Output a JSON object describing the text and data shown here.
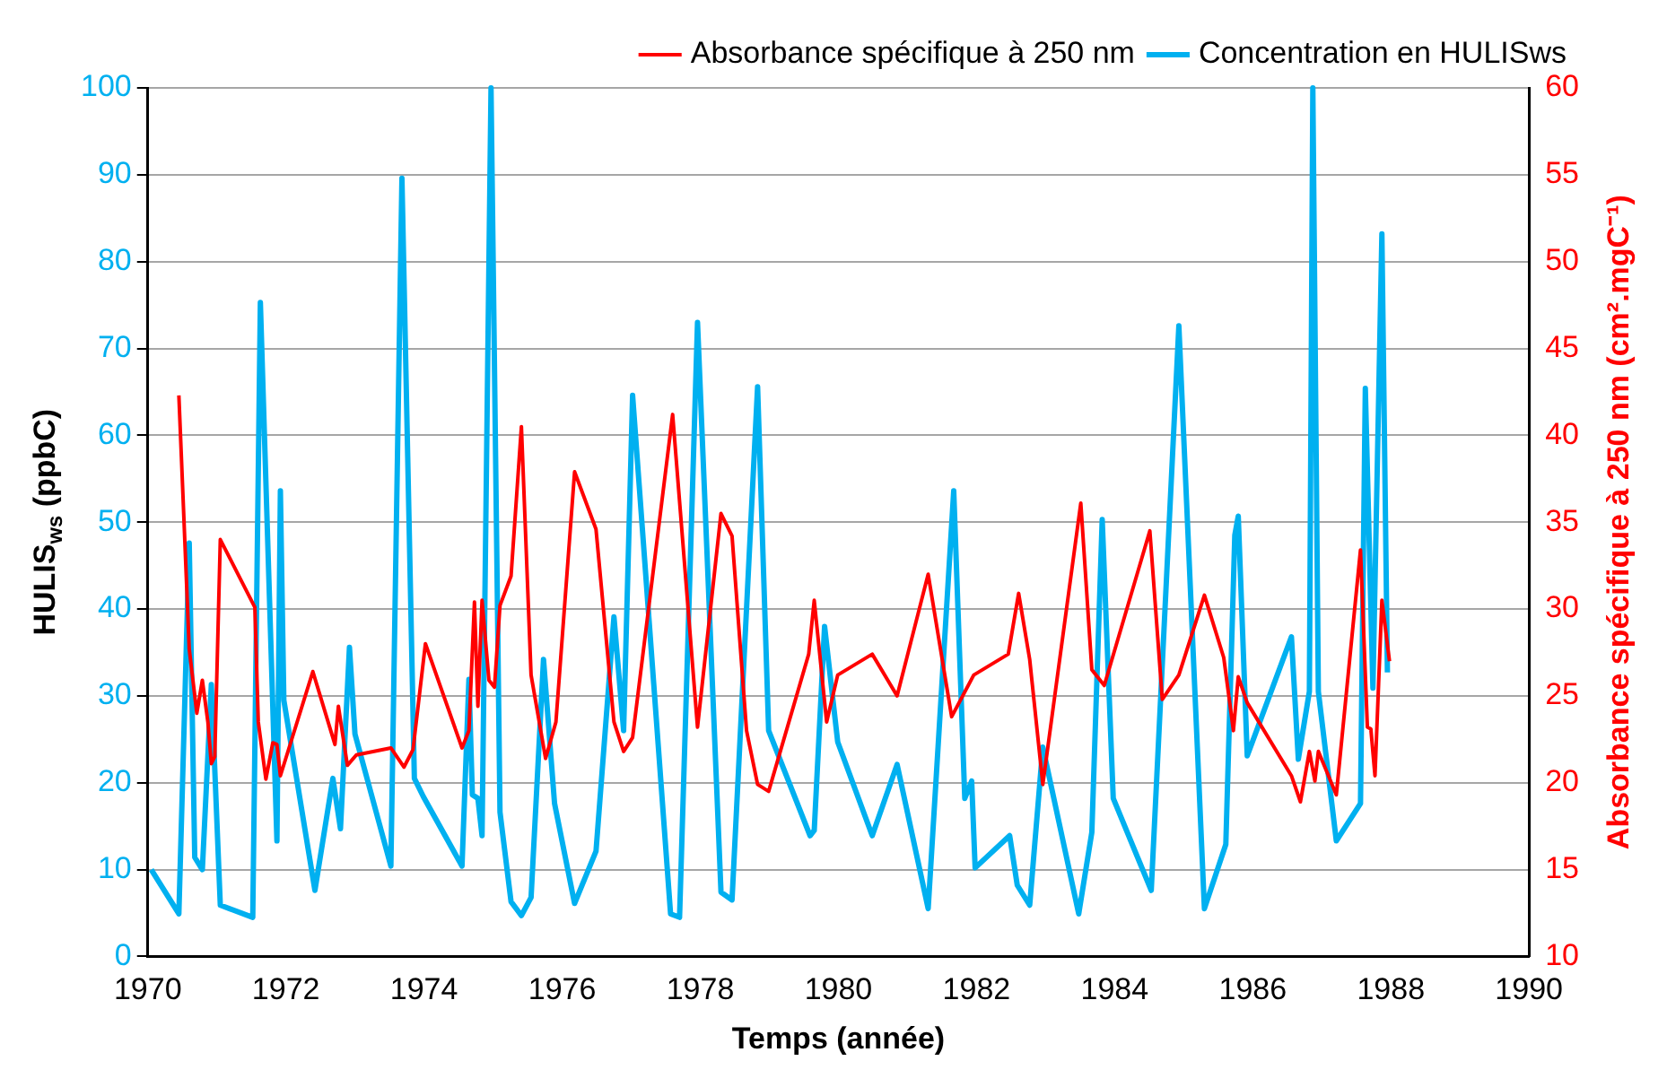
{
  "chart_data": {
    "type": "line",
    "xlabel": "Temps (année)",
    "ylabel": "HULIS$_{ws}$ (ppbC)",
    "y2label": "Absorbance spécifique à 250 nm (cm².mgC⁻¹)",
    "xlim": [
      1970,
      1990
    ],
    "xticks": [
      1970,
      1972,
      1974,
      1976,
      1978,
      1980,
      1982,
      1984,
      1986,
      1988,
      1990
    ],
    "ylim": [
      0,
      100
    ],
    "yticks": [
      0,
      10,
      20,
      30,
      40,
      50,
      60,
      70,
      80,
      90,
      100
    ],
    "y2lim": [
      10,
      60
    ],
    "y2ticks": [
      10,
      15,
      20,
      25,
      30,
      35,
      40,
      45,
      50,
      55,
      60
    ],
    "grid": "y",
    "legend": "top right",
    "marker": "none",
    "line_style": "solid",
    "series": [
      {
        "name": "Concentration en HULISws",
        "color": "#00b0f0",
        "x": [
          1970.05,
          1970.45,
          1970.6,
          1970.68,
          1970.79,
          1970.92,
          1971.05,
          1971.52,
          1971.63,
          1971.87,
          1971.92,
          1971.97,
          1972.42,
          1972.68,
          1972.79,
          1972.92,
          1973.0,
          1973.52,
          1973.68,
          1973.86,
          1973.99,
          1974.55,
          1974.65,
          1974.7,
          1974.78,
          1974.84,
          1974.97,
          1975.1,
          1975.26,
          1975.41,
          1975.55,
          1975.73,
          1975.89,
          1976.18,
          1976.49,
          1976.75,
          1976.89,
          1977.02,
          1977.57,
          1977.7,
          1977.96,
          1978.3,
          1978.46,
          1978.83,
          1978.99,
          1979.59,
          1979.65,
          1979.8,
          1979.99,
          1980.49,
          1980.85,
          1981.3,
          1981.67,
          1981.83,
          1981.93,
          1981.98,
          1982.48,
          1982.59,
          1982.77,
          1982.96,
          1983.48,
          1983.67,
          1983.82,
          1983.98,
          1984.53,
          1984.93,
          1985.3,
          1985.61,
          1985.74,
          1985.79,
          1985.92,
          1986.56,
          1986.66,
          1986.82,
          1986.87,
          1986.95,
          1987.21,
          1987.56,
          1987.63,
          1987.74,
          1987.87,
          1987.95
        ],
        "values": [
          10,
          4.9,
          47.6,
          11.4,
          10,
          31.3,
          5.9,
          4.5,
          75.3,
          13.3,
          53.6,
          29.5,
          7.6,
          20.5,
          14.7,
          35.6,
          25.6,
          10.4,
          89.6,
          20.5,
          18.4,
          10.4,
          31.9,
          18.6,
          18.2,
          13.9,
          100,
          16.6,
          6.3,
          4.7,
          6.8,
          34.2,
          17.6,
          6.1,
          12.1,
          39.1,
          26,
          64.6,
          4.9,
          4.5,
          73,
          7.4,
          6.5,
          65.6,
          26,
          13.9,
          14.5,
          38,
          24.7,
          13.9,
          22.1,
          5.5,
          53.6,
          18.2,
          20.2,
          10.2,
          13.9,
          8.2,
          5.9,
          24.1,
          4.9,
          14.3,
          50.3,
          18.2,
          7.6,
          72.6,
          5.5,
          12.9,
          48.5,
          50.7,
          23.1,
          36.8,
          22.7,
          30.5,
          100,
          30.5,
          13.3,
          17.6,
          65.4,
          30.9,
          83.2,
          32.7
        ]
      },
      {
        "name": "Absorbance spécifique à 250 nm",
        "color": "#ff0000",
        "axis": "y2",
        "x": [
          1970.45,
          1970.6,
          1970.71,
          1970.79,
          1970.87,
          1970.92,
          1970.97,
          1971.05,
          1971.55,
          1971.6,
          1971.71,
          1971.81,
          1971.87,
          1971.92,
          1972.39,
          1972.71,
          1972.76,
          1972.89,
          1973.02,
          1973.52,
          1973.71,
          1973.84,
          1974.02,
          1974.55,
          1974.65,
          1974.73,
          1974.78,
          1974.84,
          1974.94,
          1975.02,
          1975.1,
          1975.26,
          1975.41,
          1975.55,
          1975.76,
          1975.91,
          1976.18,
          1976.49,
          1976.75,
          1976.89,
          1977.02,
          1977.6,
          1977.96,
          1978.3,
          1978.46,
          1978.67,
          1978.83,
          1978.99,
          1979.57,
          1979.65,
          1979.83,
          1979.99,
          1980.49,
          1980.85,
          1981.3,
          1981.64,
          1981.96,
          1982.46,
          1982.61,
          1982.77,
          1982.96,
          1983.51,
          1983.67,
          1983.85,
          1984.51,
          1984.69,
          1984.93,
          1985.3,
          1985.58,
          1985.72,
          1985.79,
          1985.92,
          1986.56,
          1986.69,
          1986.82,
          1986.9,
          1986.95,
          1987.21,
          1987.56,
          1987.66,
          1987.71,
          1987.77,
          1987.87,
          1987.98
        ],
        "values": [
          42.3,
          27.7,
          24,
          25.9,
          23.5,
          21.1,
          21.5,
          34,
          30.1,
          23.5,
          20.2,
          22.3,
          22.2,
          20.4,
          26.4,
          22.2,
          24.4,
          21,
          21.6,
          22,
          20.9,
          21.9,
          28,
          22,
          23,
          30.4,
          24.4,
          30.5,
          25.9,
          25.5,
          30.2,
          31.9,
          40.5,
          26.2,
          21.4,
          23.5,
          37.9,
          34.6,
          23.5,
          21.8,
          22.6,
          41.2,
          23.2,
          35.5,
          34.2,
          23,
          19.9,
          19.5,
          27.4,
          30.5,
          23.5,
          26.2,
          27.4,
          25,
          32,
          23.8,
          26.2,
          27.4,
          30.9,
          27.1,
          19.9,
          36.1,
          26.5,
          25.6,
          34.5,
          24.8,
          26.2,
          30.8,
          27.2,
          23,
          26.1,
          24.6,
          20.4,
          18.9,
          21.8,
          20.1,
          21.8,
          19.3,
          33.4,
          23.2,
          23.1,
          20.4,
          30.5,
          27
        ]
      }
    ]
  }
}
